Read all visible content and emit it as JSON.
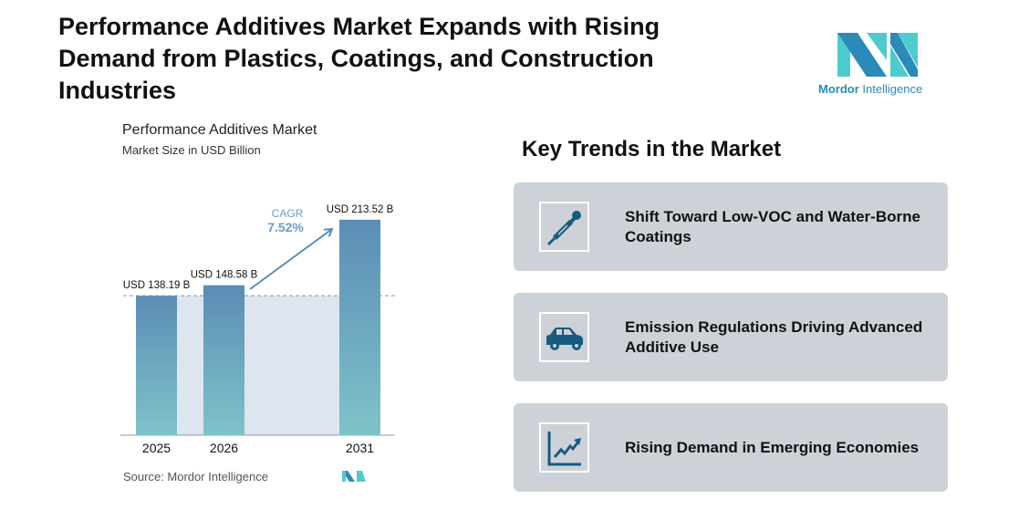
{
  "title": "Performance Additives Market Expands with Rising Demand from Plastics, Coatings, and Construction Industries",
  "logo": {
    "brand": "Mordor",
    "suffix": "Intelligence"
  },
  "chart_data": {
    "type": "bar",
    "title": "Performance Additives Market",
    "subtitle": "Market Size in USD Billion",
    "categories": [
      "2025",
      "2026",
      "2031"
    ],
    "values": [
      138.19,
      148.58,
      213.52
    ],
    "data_labels": [
      "USD 138.19 B",
      "USD 148.58 B",
      "USD 213.52 B"
    ],
    "annotation": {
      "label": "CAGR",
      "value": "7.52%"
    },
    "ylim": [
      0,
      230
    ],
    "grid": false,
    "colors": {
      "bar_top": "#5b8db5",
      "bar_bottom": "#7fc3c9",
      "band": "#dde6ee",
      "arrow": "#5b8db5"
    },
    "source": "Source: Mordor Intelligence"
  },
  "trends": {
    "title": "Key Trends in the Market",
    "items": [
      {
        "label": "Shift Toward Low-VOC and Water-Borne Coatings",
        "icon": "dropper-icon"
      },
      {
        "label": "Emission Regulations Driving Advanced Additive Use",
        "icon": "car-icon"
      },
      {
        "label": "Rising Demand in Emerging Economies",
        "icon": "growth-chart-icon"
      }
    ],
    "icon_color": "#175b7e"
  }
}
